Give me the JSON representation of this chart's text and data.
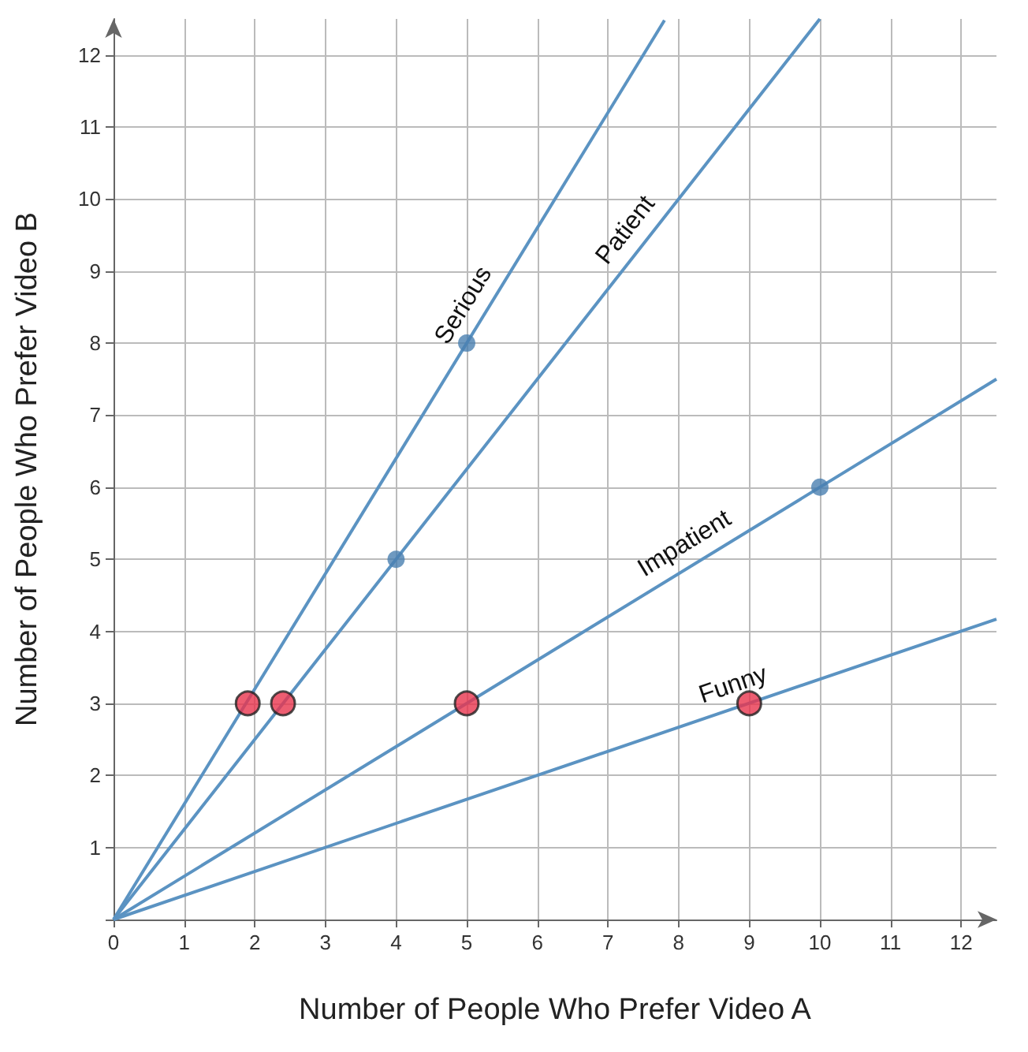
{
  "chart_data": {
    "type": "line",
    "xlabel": "Number of People Who Prefer Video A",
    "ylabel": "Number of People Who Prefer Video B",
    "xlim": [
      0,
      12.5
    ],
    "ylim": [
      0,
      12.5
    ],
    "xticks": [
      0,
      1,
      2,
      3,
      4,
      5,
      6,
      7,
      8,
      9,
      10,
      11,
      12
    ],
    "yticks": [
      {
        "value": 0,
        "label": null
      },
      1,
      2,
      3,
      4,
      5,
      6,
      7,
      8,
      9,
      10,
      11,
      12
    ],
    "grid": true,
    "legend": false,
    "marker": "none",
    "series": [
      {
        "name": "Serious",
        "color": "#5b93c2",
        "x": [
          0,
          7.8
        ],
        "values": [
          0,
          12.48
        ]
      },
      {
        "name": "Patient",
        "color": "#5b93c2",
        "x": [
          0,
          10
        ],
        "values": [
          0,
          12.5
        ]
      },
      {
        "name": "Impatient",
        "color": "#5b93c2",
        "x": [
          0,
          12.5
        ],
        "values": [
          0,
          7.5
        ]
      },
      {
        "name": "Funny",
        "color": "#5b93c2",
        "x": [
          0,
          12.5
        ],
        "values": [
          0,
          4.17
        ]
      },
      {
        "type": "scatter",
        "marker": "circle",
        "color": "#4a7fb0",
        "x": [
          5,
          4,
          10
        ],
        "values": [
          8,
          5,
          6
        ]
      },
      {
        "type": "scatter",
        "marker": "circle",
        "color": "#e8344e",
        "x": [
          1.9,
          2.4,
          5,
          9
        ],
        "values": [
          3,
          3,
          3,
          3
        ]
      }
    ]
  }
}
